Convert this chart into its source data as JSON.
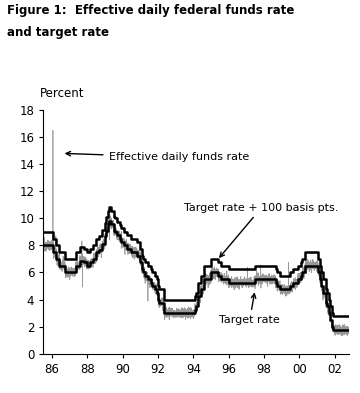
{
  "title_line1": "Figure 1:  Effective daily federal funds rate",
  "title_line2": "and target rate",
  "ylabel": "Percent",
  "xlim": [
    1985.5,
    2002.83
  ],
  "ylim": [
    0,
    18
  ],
  "yticks": [
    0,
    2,
    4,
    6,
    8,
    10,
    12,
    14,
    16,
    18
  ],
  "xtick_labels": [
    "86",
    "88",
    "90",
    "92",
    "94",
    "96",
    "98",
    "00",
    "02"
  ],
  "xtick_positions": [
    1986,
    1988,
    1990,
    1992,
    1994,
    1996,
    1998,
    2000,
    2002
  ],
  "background_color": "#ffffff",
  "target_rate_color": "#000000",
  "target_plus_color": "#000000",
  "effective_color": "#999999",
  "target_rate_lw": 1.8,
  "target_plus_lw": 1.8,
  "effective_lw": 0.5,
  "annotation_fontsize": 8.0,
  "target_rate_steps": [
    [
      1985.5,
      8.0
    ],
    [
      1986.0,
      8.0
    ],
    [
      1986.08,
      7.5
    ],
    [
      1986.25,
      7.0
    ],
    [
      1986.42,
      6.5
    ],
    [
      1986.75,
      6.0
    ],
    [
      1987.0,
      6.0
    ],
    [
      1987.33,
      6.5
    ],
    [
      1987.58,
      6.875
    ],
    [
      1987.83,
      6.75
    ],
    [
      1988.0,
      6.5
    ],
    [
      1988.17,
      6.75
    ],
    [
      1988.33,
      7.0
    ],
    [
      1988.5,
      7.5
    ],
    [
      1988.67,
      7.6875
    ],
    [
      1988.83,
      8.125
    ],
    [
      1989.0,
      8.6875
    ],
    [
      1989.08,
      9.0625
    ],
    [
      1989.17,
      9.5625
    ],
    [
      1989.25,
      9.8125
    ],
    [
      1989.33,
      9.5625
    ],
    [
      1989.5,
      9.0625
    ],
    [
      1989.58,
      9.0
    ],
    [
      1989.67,
      8.75
    ],
    [
      1989.83,
      8.5
    ],
    [
      1989.92,
      8.25
    ],
    [
      1990.0,
      8.25
    ],
    [
      1990.08,
      8.0
    ],
    [
      1990.25,
      7.75
    ],
    [
      1990.5,
      7.5
    ],
    [
      1990.75,
      7.5
    ],
    [
      1990.83,
      7.25
    ],
    [
      1991.0,
      6.75
    ],
    [
      1991.08,
      6.25
    ],
    [
      1991.17,
      6.0
    ],
    [
      1991.25,
      5.75
    ],
    [
      1991.42,
      5.5
    ],
    [
      1991.58,
      5.25
    ],
    [
      1991.67,
      5.0
    ],
    [
      1991.83,
      4.75
    ],
    [
      1991.92,
      4.5
    ],
    [
      1992.0,
      4.0
    ],
    [
      1992.08,
      3.75
    ],
    [
      1992.33,
      3.0
    ],
    [
      1994.0,
      3.0
    ],
    [
      1994.08,
      3.25
    ],
    [
      1994.17,
      3.5
    ],
    [
      1994.25,
      4.25
    ],
    [
      1994.42,
      4.75
    ],
    [
      1994.58,
      5.5
    ],
    [
      1994.92,
      5.5
    ],
    [
      1995.0,
      6.0
    ],
    [
      1995.17,
      6.0
    ],
    [
      1995.42,
      5.75
    ],
    [
      1995.58,
      5.5
    ],
    [
      1995.92,
      5.5
    ],
    [
      1996.0,
      5.25
    ],
    [
      1997.25,
      5.25
    ],
    [
      1997.5,
      5.5
    ],
    [
      1998.5,
      5.5
    ],
    [
      1998.67,
      5.25
    ],
    [
      1998.75,
      5.0
    ],
    [
      1998.92,
      4.75
    ],
    [
      1999.25,
      4.75
    ],
    [
      1999.5,
      5.0
    ],
    [
      1999.67,
      5.25
    ],
    [
      1999.92,
      5.5
    ],
    [
      2000.08,
      5.75
    ],
    [
      2000.17,
      6.0
    ],
    [
      2000.33,
      6.5
    ],
    [
      2001.0,
      6.5
    ],
    [
      2001.08,
      6.0
    ],
    [
      2001.17,
      5.5
    ],
    [
      2001.25,
      5.0
    ],
    [
      2001.33,
      4.5
    ],
    [
      2001.5,
      3.75
    ],
    [
      2001.58,
      3.5
    ],
    [
      2001.67,
      3.0
    ],
    [
      2001.75,
      2.5
    ],
    [
      2001.83,
      2.0
    ],
    [
      2001.92,
      1.75
    ],
    [
      2002.83,
      1.75
    ]
  ]
}
